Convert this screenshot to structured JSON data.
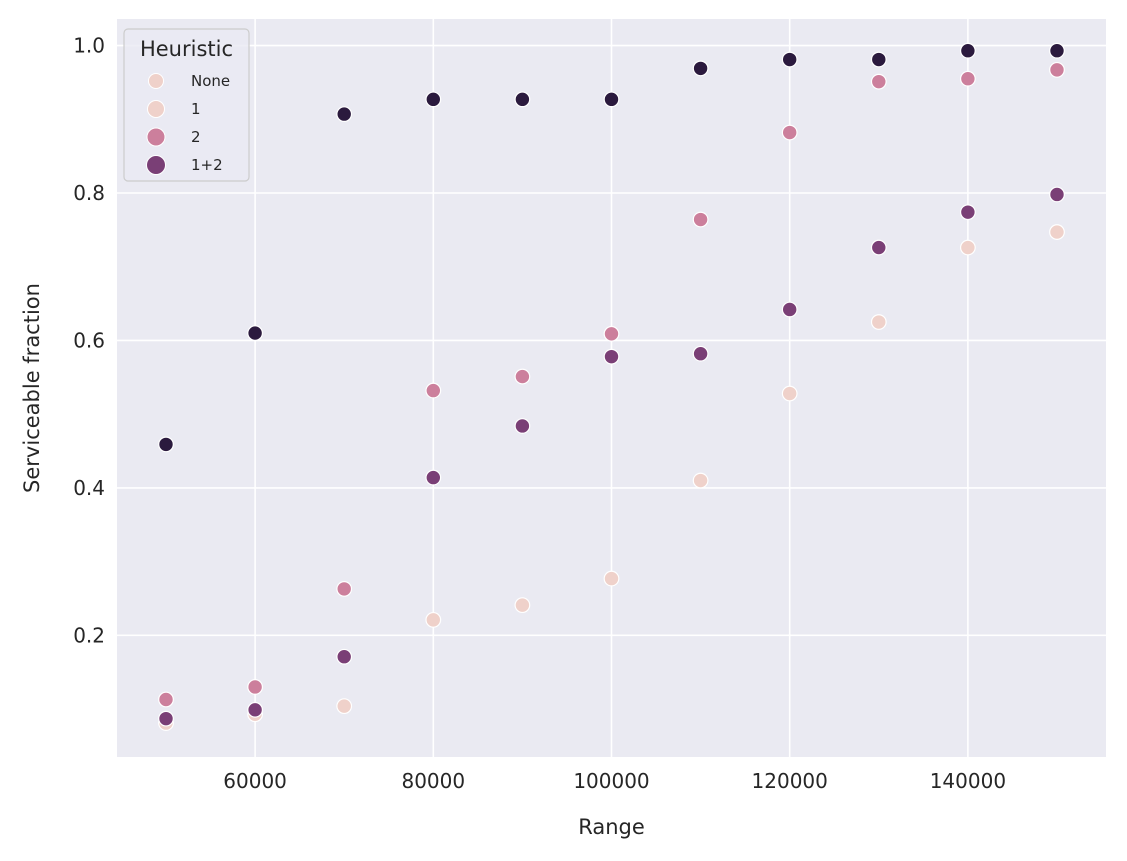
{
  "chart_data": {
    "type": "scatter",
    "xlabel": "Range",
    "ylabel": "Serviceable fraction",
    "xlim": [
      44500,
      155500
    ],
    "ylim": [
      0.035,
      1.036
    ],
    "xticks": [
      60000,
      80000,
      100000,
      120000,
      140000
    ],
    "yticks": [
      0.2,
      0.4,
      0.6,
      0.8,
      1.0
    ],
    "xtick_labels": [
      "60000",
      "80000",
      "100000",
      "120000",
      "140000"
    ],
    "ytick_labels": [
      "0.2",
      "0.4",
      "0.6",
      "0.8",
      "1.0"
    ],
    "grid": true,
    "background": "#eaeaf2",
    "legend": {
      "title": "Heuristic",
      "placement": "top-left",
      "entries": [
        "None",
        "1",
        "2",
        "1+2"
      ],
      "colors": [
        "#efd1ca",
        "#efd1ca",
        "#cc7f9c",
        "#7a3f76"
      ]
    },
    "series": [
      {
        "name": "None",
        "color": "#efd1ca",
        "x": [
          50000,
          60000,
          70000,
          80000,
          90000,
          100000,
          110000,
          120000,
          130000,
          140000,
          150000
        ],
        "y": [
          0.081,
          0.093,
          0.104,
          0.221,
          0.241,
          0.277,
          0.41,
          0.528,
          0.625,
          0.726,
          0.747
        ]
      },
      {
        "name": "2",
        "color": "#cc7f9c",
        "x": [
          50000,
          60000,
          70000,
          80000,
          90000,
          100000,
          110000,
          120000,
          130000,
          140000,
          150000
        ],
        "y": [
          0.113,
          0.13,
          0.263,
          0.532,
          0.551,
          0.609,
          0.764,
          0.882,
          0.951,
          0.955,
          0.967
        ]
      },
      {
        "name": "1+2",
        "color": "#7a3f76",
        "x": [
          50000,
          60000,
          70000,
          80000,
          90000,
          100000,
          110000,
          120000,
          130000,
          140000,
          150000
        ],
        "y": [
          0.087,
          0.099,
          0.171,
          0.414,
          0.484,
          0.578,
          0.582,
          0.642,
          0.726,
          0.774,
          0.798
        ]
      },
      {
        "color": "#2b1a3e",
        "x": [
          50000,
          60000,
          70000,
          80000,
          90000,
          100000,
          110000,
          120000,
          130000,
          140000,
          150000
        ],
        "y": [
          0.459,
          0.61,
          0.907,
          0.927,
          0.927,
          0.927,
          0.969,
          0.981,
          0.981,
          0.993,
          0.993
        ]
      }
    ]
  }
}
